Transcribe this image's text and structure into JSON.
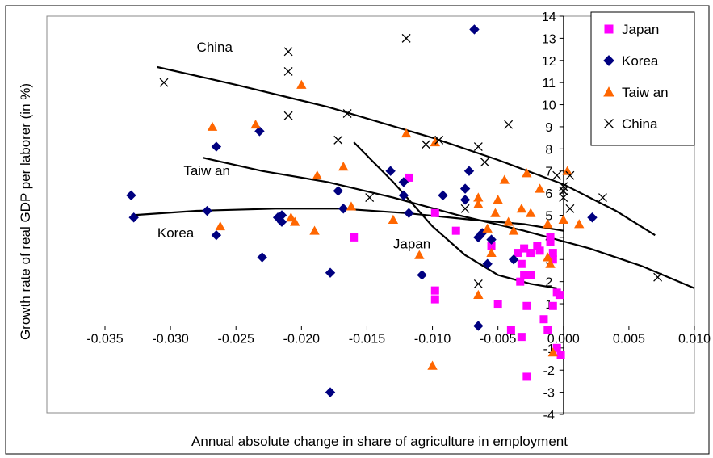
{
  "chart_data": {
    "type": "scatter",
    "xlabel": "Annual absolute change in share of agriculture in employment",
    "ylabel": "Growth rate of real GDP per laborer (in %)",
    "xlim": [
      -0.035,
      0.01
    ],
    "ylim": [
      -4,
      14
    ],
    "x_ticks": [
      "-0.035",
      "-0.030",
      "-0.025",
      "-0.020",
      "-0.015",
      "-0.010",
      "-0.005",
      "0.000",
      "0.005",
      "0.010"
    ],
    "x_tick_values": [
      -0.035,
      -0.03,
      -0.025,
      -0.02,
      -0.015,
      -0.01,
      -0.005,
      0.0,
      0.005,
      0.01
    ],
    "y_ticks": [
      "-4",
      "-3",
      "-2",
      "-1",
      "1",
      "2",
      "3",
      "4",
      "5",
      "6",
      "7",
      "8",
      "9",
      "10",
      "11",
      "12",
      "13",
      "14"
    ],
    "y_tick_values": [
      -4,
      -3,
      -2,
      -1,
      1,
      2,
      3,
      4,
      5,
      6,
      7,
      8,
      9,
      10,
      11,
      12,
      13,
      14
    ],
    "grid": false,
    "legend_position": "top-right",
    "series": [
      {
        "name": "Japan",
        "marker": "square",
        "color": "#FF00FF",
        "points": [
          [
            -0.0118,
            6.7
          ],
          [
            -0.0098,
            5.1
          ],
          [
            -0.0098,
            1.6
          ],
          [
            -0.0098,
            1.2
          ],
          [
            -0.016,
            4.0
          ],
          [
            -0.0082,
            4.3
          ],
          [
            -0.0055,
            3.6
          ],
          [
            -0.005,
            1.0
          ],
          [
            -0.004,
            -0.2
          ],
          [
            -0.0035,
            3.3
          ],
          [
            -0.0033,
            2.0
          ],
          [
            -0.0032,
            2.8
          ],
          [
            -0.0032,
            -0.5
          ],
          [
            -0.003,
            3.5
          ],
          [
            -0.003,
            2.3
          ],
          [
            -0.0028,
            0.9
          ],
          [
            -0.0028,
            -2.3
          ],
          [
            -0.0025,
            3.3
          ],
          [
            -0.0025,
            2.3
          ],
          [
            -0.002,
            3.6
          ],
          [
            -0.0018,
            3.4
          ],
          [
            -0.0015,
            0.3
          ],
          [
            -0.0012,
            -0.2
          ],
          [
            -0.001,
            4.0
          ],
          [
            -0.001,
            3.8
          ],
          [
            -0.0008,
            3.3
          ],
          [
            -0.0008,
            3.0
          ],
          [
            -0.0008,
            0.9
          ],
          [
            -0.0005,
            1.5
          ],
          [
            -0.0005,
            -1.0
          ],
          [
            -0.0003,
            1.4
          ],
          [
            -0.0002,
            -1.3
          ]
        ]
      },
      {
        "name": "Korea",
        "marker": "diamond",
        "color": "#000080",
        "points": [
          [
            -0.033,
            5.9
          ],
          [
            -0.0328,
            4.9
          ],
          [
            -0.0272,
            5.2
          ],
          [
            -0.0265,
            8.1
          ],
          [
            -0.0265,
            4.1
          ],
          [
            -0.0232,
            8.8
          ],
          [
            -0.023,
            3.1
          ],
          [
            -0.0218,
            4.9
          ],
          [
            -0.0215,
            5.0
          ],
          [
            -0.0215,
            4.7
          ],
          [
            -0.0178,
            2.4
          ],
          [
            -0.0178,
            -3.0
          ],
          [
            -0.0172,
            6.1
          ],
          [
            -0.0168,
            5.3
          ],
          [
            -0.0132,
            7.0
          ],
          [
            -0.0122,
            6.5
          ],
          [
            -0.0122,
            5.9
          ],
          [
            -0.0118,
            5.1
          ],
          [
            -0.0108,
            2.3
          ],
          [
            -0.0092,
            5.9
          ],
          [
            -0.0075,
            5.7
          ],
          [
            -0.0075,
            6.2
          ],
          [
            -0.0072,
            7.0
          ],
          [
            -0.0068,
            13.4
          ],
          [
            -0.0065,
            4.0
          ],
          [
            -0.0065,
            0.0
          ],
          [
            -0.0062,
            4.2
          ],
          [
            -0.0058,
            2.8
          ],
          [
            -0.0055,
            3.9
          ],
          [
            -0.0038,
            3.0
          ],
          [
            0.0022,
            4.9
          ]
        ]
      },
      {
        "name": "Taiw an",
        "marker": "triangle",
        "color": "#FF6600",
        "points": [
          [
            -0.0268,
            9.0
          ],
          [
            -0.0262,
            4.5
          ],
          [
            -0.0235,
            9.1
          ],
          [
            -0.0208,
            4.9
          ],
          [
            -0.0205,
            4.7
          ],
          [
            -0.02,
            10.9
          ],
          [
            -0.019,
            4.3
          ],
          [
            -0.0188,
            6.8
          ],
          [
            -0.0168,
            7.2
          ],
          [
            -0.0162,
            5.4
          ],
          [
            -0.013,
            4.8
          ],
          [
            -0.012,
            8.7
          ],
          [
            -0.011,
            3.2
          ],
          [
            -0.01,
            -1.8
          ],
          [
            -0.0098,
            8.3
          ],
          [
            -0.0065,
            5.5
          ],
          [
            -0.0065,
            5.8
          ],
          [
            -0.0065,
            1.4
          ],
          [
            -0.0058,
            4.4
          ],
          [
            -0.0055,
            3.3
          ],
          [
            -0.0052,
            5.1
          ],
          [
            -0.005,
            5.7
          ],
          [
            -0.0045,
            6.6
          ],
          [
            -0.0042,
            4.7
          ],
          [
            -0.0038,
            4.3
          ],
          [
            -0.0032,
            5.3
          ],
          [
            -0.0028,
            6.9
          ],
          [
            -0.0025,
            5.1
          ],
          [
            -0.0018,
            6.2
          ],
          [
            -0.0012,
            4.6
          ],
          [
            -0.0012,
            3.1
          ],
          [
            -0.001,
            2.8
          ],
          [
            -0.0008,
            -1.2
          ],
          [
            0.0,
            4.8
          ],
          [
            0.0003,
            7.0
          ],
          [
            0.0012,
            4.6
          ]
        ]
      },
      {
        "name": "China",
        "marker": "cross",
        "color": "#000000",
        "points": [
          [
            -0.0305,
            11.0
          ],
          [
            -0.021,
            12.4
          ],
          [
            -0.021,
            11.5
          ],
          [
            -0.021,
            9.5
          ],
          [
            -0.0165,
            9.6
          ],
          [
            -0.0172,
            8.4
          ],
          [
            -0.0148,
            5.8
          ],
          [
            -0.012,
            13.0
          ],
          [
            -0.0105,
            8.2
          ],
          [
            -0.0095,
            8.4
          ],
          [
            -0.0075,
            5.3
          ],
          [
            -0.0065,
            8.1
          ],
          [
            -0.006,
            7.4
          ],
          [
            -0.0065,
            1.9
          ],
          [
            -0.0042,
            9.1
          ],
          [
            -0.0005,
            6.8
          ],
          [
            0.0,
            6.3
          ],
          [
            0.0,
            6.1
          ],
          [
            0.0,
            5.8
          ],
          [
            0.0005,
            6.8
          ],
          [
            0.0005,
            5.3
          ],
          [
            0.003,
            5.8
          ],
          [
            0.0072,
            2.2
          ]
        ]
      }
    ],
    "trend_lines": [
      {
        "label": "China",
        "points": [
          [
            -0.031,
            11.7
          ],
          [
            -0.025,
            10.9
          ],
          [
            -0.018,
            9.9
          ],
          [
            -0.01,
            8.5
          ],
          [
            -0.005,
            7.5
          ],
          [
            0.0,
            6.4
          ],
          [
            0.004,
            5.2
          ],
          [
            0.007,
            4.1
          ]
        ]
      },
      {
        "label": "Taiw an",
        "points": [
          [
            -0.0275,
            7.6
          ],
          [
            -0.023,
            7.0
          ],
          [
            -0.018,
            6.5
          ],
          [
            -0.013,
            5.8
          ],
          [
            -0.008,
            5.0
          ],
          [
            -0.003,
            4.3
          ],
          [
            0.002,
            3.5
          ],
          [
            0.006,
            2.7
          ],
          [
            0.01,
            1.7
          ]
        ]
      },
      {
        "label": "Korea",
        "points": [
          [
            -0.033,
            5.0
          ],
          [
            -0.028,
            5.2
          ],
          [
            -0.022,
            5.3
          ],
          [
            -0.017,
            5.3
          ],
          [
            -0.012,
            5.1
          ],
          [
            -0.007,
            4.8
          ],
          [
            -0.003,
            4.6
          ],
          [
            0.0,
            4.3
          ]
        ]
      },
      {
        "label": "Japan",
        "points": [
          [
            -0.016,
            8.3
          ],
          [
            -0.013,
            6.5
          ],
          [
            -0.01,
            4.5
          ],
          [
            -0.0075,
            3.2
          ],
          [
            -0.005,
            2.3
          ],
          [
            -0.0025,
            1.9
          ],
          [
            -0.0005,
            1.7
          ]
        ]
      }
    ],
    "trend_line_labels": [
      {
        "text": "China",
        "x": -0.028,
        "y": 12.4
      },
      {
        "text": "Taiw an",
        "x": -0.029,
        "y": 6.8
      },
      {
        "text": "Korea",
        "x": -0.031,
        "y": 4.0
      },
      {
        "text": "Japan",
        "x": -0.013,
        "y": 3.5
      }
    ]
  }
}
